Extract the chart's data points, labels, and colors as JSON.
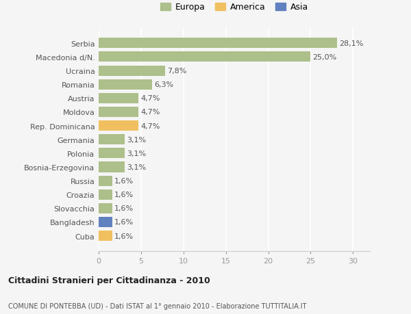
{
  "countries": [
    "Cuba",
    "Bangladesh",
    "Slovacchia",
    "Croazia",
    "Russia",
    "Bosnia-Erzegovina",
    "Polonia",
    "Germania",
    "Rep. Dominicana",
    "Moldova",
    "Austria",
    "Romania",
    "Ucraina",
    "Macedonia d/N.",
    "Serbia"
  ],
  "values": [
    1.6,
    1.6,
    1.6,
    1.6,
    1.6,
    3.1,
    3.1,
    3.1,
    4.7,
    4.7,
    4.7,
    6.3,
    7.8,
    25.0,
    28.1
  ],
  "labels": [
    "1,6%",
    "1,6%",
    "1,6%",
    "1,6%",
    "1,6%",
    "3,1%",
    "3,1%",
    "3,1%",
    "4,7%",
    "4,7%",
    "4,7%",
    "6,3%",
    "7,8%",
    "25,0%",
    "28,1%"
  ],
  "continents": [
    "America",
    "Asia",
    "Europa",
    "Europa",
    "Europa",
    "Europa",
    "Europa",
    "Europa",
    "America",
    "Europa",
    "Europa",
    "Europa",
    "Europa",
    "Europa",
    "Europa"
  ],
  "colors": {
    "Europa": "#adbf8a",
    "America": "#f0c060",
    "Asia": "#6080c0"
  },
  "legend": [
    "Europa",
    "America",
    "Asia"
  ],
  "legend_colors": [
    "#adbf8a",
    "#f0c060",
    "#6080c0"
  ],
  "title1": "Cittadini Stranieri per Cittadinanza - 2010",
  "title2": "COMUNE DI PONTEBBA (UD) - Dati ISTAT al 1° gennaio 2010 - Elaborazione TUTTITALIA.IT",
  "xlim": [
    0,
    32
  ],
  "xticks": [
    0,
    5,
    10,
    15,
    20,
    25,
    30
  ],
  "bar_height": 0.75,
  "background_color": "#f5f5f5",
  "grid_color": "#ffffff",
  "label_fontsize": 8,
  "tick_fontsize": 8,
  "value_label_fontsize": 8
}
